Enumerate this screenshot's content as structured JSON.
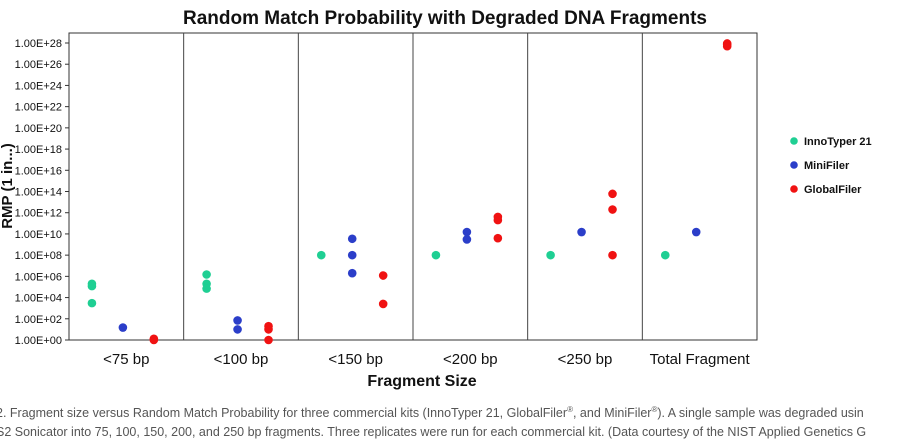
{
  "chart_data": {
    "type": "scatter",
    "title": "Random Match Probability with Degraded DNA Fragments",
    "xlabel": "Fragment Size",
    "ylabel": "RMP (1 in...)",
    "yscale": "log",
    "ylim_exponent": [
      0,
      28
    ],
    "y_tick_labels": [
      "1.00E+00",
      "1.00E+02",
      "1.00E+04",
      "1.00E+06",
      "1.00E+08",
      "1.00E+10",
      "1.00E+12",
      "1.00E+14",
      "1.00E+16",
      "1.00E+18",
      "1.00E+20",
      "1.00E+22",
      "1.00E+24",
      "1.00E+26",
      "1.00E+28"
    ],
    "categories": [
      "<75 bp",
      "<100 bp",
      "<150 bp",
      "<200 bp",
      "<250 bp",
      "Total Fragment"
    ],
    "legend_position": "right",
    "grid": false,
    "series": [
      {
        "name": "InnoTyper 21",
        "color": "#1fcf93",
        "points": [
          {
            "category": "<75 bp",
            "values": [
              200000.0,
              120000.0,
              3000.0
            ]
          },
          {
            "category": "<100 bp",
            "values": [
              1500000.0,
              200000.0,
              70000.0
            ]
          },
          {
            "category": "<150 bp",
            "values": [
              100000000.0
            ]
          },
          {
            "category": "<200 bp",
            "values": [
              100000000.0
            ]
          },
          {
            "category": "<250 bp",
            "values": [
              100000000.0
            ]
          },
          {
            "category": "Total Fragment",
            "values": [
              100000000.0
            ]
          }
        ]
      },
      {
        "name": "MiniFiler",
        "color": "#2b3ec9",
        "points": [
          {
            "category": "<75 bp",
            "values": [
              15.0
            ]
          },
          {
            "category": "<100 bp",
            "values": [
              70.0,
              10.0
            ]
          },
          {
            "category": "<150 bp",
            "values": [
              3500000000.0,
              100000000.0,
              2000000.0
            ]
          },
          {
            "category": "<200 bp",
            "values": [
              15000000000.0,
              3000000000.0
            ]
          },
          {
            "category": "<250 bp",
            "values": [
              15000000000.0
            ]
          },
          {
            "category": "Total Fragment",
            "values": [
              15000000000.0
            ]
          }
        ]
      },
      {
        "name": "GlobalFiler",
        "color": "#f01212",
        "points": [
          {
            "category": "<75 bp",
            "values": [
              1.0,
              1.3
            ]
          },
          {
            "category": "<100 bp",
            "values": [
              1.0,
              10.0,
              20.0
            ]
          },
          {
            "category": "<150 bp",
            "values": [
              1200000.0,
              2500.0
            ]
          },
          {
            "category": "<200 bp",
            "values": [
              4000000000.0,
              200000000000.0,
              400000000000.0
            ]
          },
          {
            "category": "<250 bp",
            "values": [
              100000000.0,
              2000000000000.0,
              60000000000000.0
            ]
          },
          {
            "category": "Total Fragment",
            "values": [
              5e+27,
              7e+27,
              9e+27
            ]
          }
        ]
      }
    ]
  },
  "caption": {
    "line1_a": "2. Fragment size versus Random Match Probability for three commercial kits (InnoTyper 21, GlobalFiler",
    "line1_sup1": "®",
    "line1_b": ", and MiniFiler",
    "line1_sup2": "®",
    "line1_c": "). A single sample was degraded usin",
    "line2": "S2 Sonicator into 75, 100, 150, 200, and 250 bp fragments. Three replicates were run for each commercial kit. (Data courtesy of the NIST Applied Genetics G"
  }
}
